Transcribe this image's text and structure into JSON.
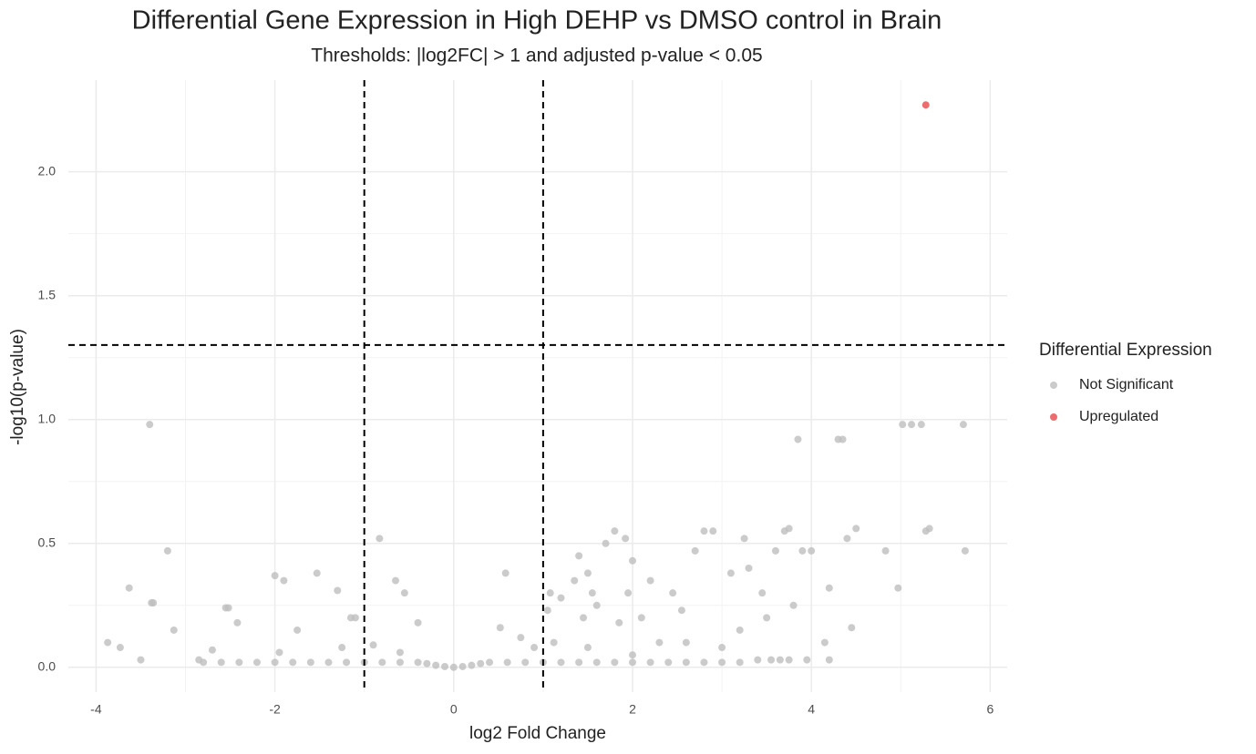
{
  "chart_data": {
    "type": "scatter",
    "title": "Differential Gene Expression in High DEHP vs DMSO control in Brain",
    "subtitle": "Thresholds: |log2FC| > 1 and adjusted p-value < 0.05",
    "x_label": "log2 Fold Change",
    "y_label": "-log10(p-value)",
    "legend_title": "Differential Expression",
    "legend_position": "right",
    "grid": true,
    "xlim": [
      -4.31,
      6.19
    ],
    "ylim": [
      -0.1,
      2.37
    ],
    "xticks": [
      -4,
      -2,
      0,
      2,
      4,
      6
    ],
    "yticks": [
      {
        "value": 0,
        "label": "0.0"
      },
      0.5,
      {
        "value": 1,
        "label": "1.0"
      },
      1.5,
      {
        "value": 2,
        "label": "2.0"
      }
    ],
    "thresholds": {
      "x": [
        -1,
        1
      ],
      "y": 1.301
    },
    "series": [
      {
        "name": "Not Significant",
        "color": "#bebebe",
        "x": [
          -3.87,
          -3.73,
          -3.63,
          -3.4,
          -3.38,
          -3.36,
          -3.5,
          -3.2,
          -3.13,
          -2.85,
          -2.7,
          -2.55,
          -2.52,
          -2.42,
          -2.0,
          -1.9,
          -1.53,
          -1.3,
          -1.75,
          -1.95,
          -1.15,
          -1.1,
          -1.25,
          -0.83,
          -0.65,
          -0.55,
          -0.4,
          -0.6,
          -0.9,
          0.58,
          0.52,
          0.75,
          0.9,
          1.05,
          1.08,
          1.12,
          1.2,
          1.4,
          1.35,
          1.5,
          1.45,
          1.55,
          1.6,
          1.7,
          1.8,
          1.92,
          1.95,
          1.85,
          2.0,
          2.1,
          2.2,
          2.3,
          2.45,
          2.55,
          2.7,
          2.8,
          2.9,
          3.1,
          3.25,
          3.3,
          3.45,
          3.6,
          3.7,
          3.75,
          3.85,
          3.9,
          4.0,
          4.3,
          4.35,
          4.4,
          4.5,
          4.45,
          4.2,
          4.15,
          4.2,
          4.83,
          4.97,
          5.02,
          5.12,
          5.23,
          5.28,
          5.32,
          5.7,
          5.72,
          3.8,
          3.5,
          3.2,
          3.0,
          2.6,
          2.0,
          1.5,
          3.75,
          3.95,
          3.65,
          3.55,
          3.4,
          -2.8,
          -2.6,
          -2.4,
          -2.2,
          -2.0,
          -1.8,
          -1.6,
          -1.4,
          -1.2,
          -1.0,
          -0.8,
          -0.6,
          -0.4,
          -0.3,
          -0.2,
          -0.1,
          0,
          0.1,
          0.2,
          0.3,
          0.4,
          0.6,
          0.8,
          1.0,
          1.2,
          1.4,
          1.6,
          1.8,
          2.0,
          2.2,
          2.4,
          2.6,
          2.8,
          3.0,
          3.2
        ],
        "values": [
          0.1,
          0.08,
          0.32,
          0.98,
          0.26,
          0.26,
          0.03,
          0.47,
          0.15,
          0.03,
          0.07,
          0.24,
          0.24,
          0.18,
          0.37,
          0.35,
          0.38,
          0.31,
          0.15,
          0.06,
          0.2,
          0.2,
          0.08,
          0.52,
          0.35,
          0.3,
          0.18,
          0.06,
          0.09,
          0.38,
          0.16,
          0.12,
          0.08,
          0.23,
          0.3,
          0.1,
          0.28,
          0.45,
          0.35,
          0.38,
          0.2,
          0.3,
          0.25,
          0.5,
          0.55,
          0.52,
          0.3,
          0.18,
          0.43,
          0.2,
          0.35,
          0.1,
          0.3,
          0.23,
          0.47,
          0.55,
          0.55,
          0.38,
          0.52,
          0.4,
          0.3,
          0.47,
          0.55,
          0.56,
          0.92,
          0.47,
          0.47,
          0.92,
          0.92,
          0.52,
          0.56,
          0.16,
          0.32,
          0.1,
          0.03,
          0.47,
          0.32,
          0.98,
          0.98,
          0.98,
          0.55,
          0.56,
          0.98,
          0.47,
          0.25,
          0.2,
          0.15,
          0.08,
          0.1,
          0.05,
          0.08,
          0.03,
          0.03,
          0.03,
          0.03,
          0.03,
          0.02,
          0.02,
          0.02,
          0.02,
          0.02,
          0.02,
          0.02,
          0.02,
          0.02,
          0.02,
          0.02,
          0.02,
          0.02,
          0.015,
          0.008,
          0.003,
          0,
          0.003,
          0.008,
          0.015,
          0.02,
          0.02,
          0.02,
          0.02,
          0.02,
          0.02,
          0.02,
          0.02,
          0.02,
          0.02,
          0.02,
          0.02,
          0.02,
          0.02,
          0.02
        ]
      },
      {
        "name": "Upregulated",
        "color": "#e8474a",
        "x": [
          5.28
        ],
        "values": [
          2.27
        ]
      }
    ]
  }
}
